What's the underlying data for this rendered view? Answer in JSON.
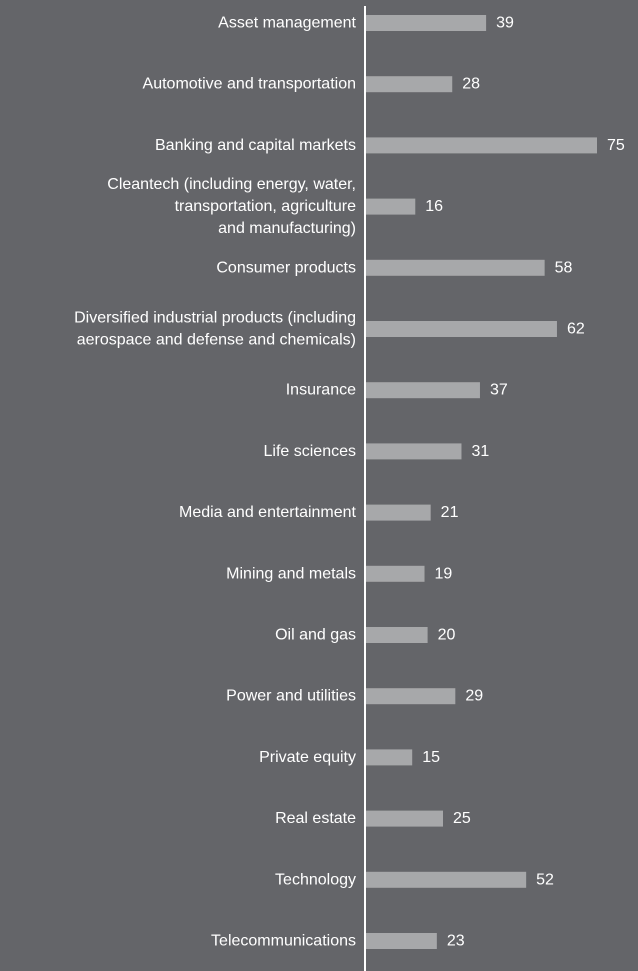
{
  "chart_data": {
    "type": "bar",
    "orientation": "horizontal",
    "categories": [
      [
        "Asset management"
      ],
      [
        "Automotive and transportation"
      ],
      [
        "Banking and capital markets"
      ],
      [
        "Cleantech (including energy, water,",
        "transportation, agriculture",
        "and manufacturing)"
      ],
      [
        "Consumer products"
      ],
      [
        "Diversified industrial products (including",
        "aerospace and defense and chemicals)"
      ],
      [
        "Insurance"
      ],
      [
        "Life sciences"
      ],
      [
        "Media and entertainment"
      ],
      [
        "Mining and metals"
      ],
      [
        "Oil and gas"
      ],
      [
        "Power and utilities"
      ],
      [
        "Private equity"
      ],
      [
        "Real estate"
      ],
      [
        "Technology"
      ],
      [
        "Telecommunications"
      ]
    ],
    "values": [
      39,
      28,
      75,
      16,
      58,
      62,
      37,
      31,
      21,
      19,
      20,
      29,
      15,
      25,
      52,
      23
    ],
    "data_labels": [
      "39",
      "28",
      "75",
      "16",
      "58",
      "62",
      "37",
      "31",
      "21",
      "19",
      "20",
      "29",
      "15",
      "25",
      "52",
      "23"
    ],
    "title": "",
    "xlabel": "",
    "ylabel": "",
    "xlim": [
      0,
      75
    ],
    "grid": false,
    "legend": "none"
  },
  "colors": {
    "background": "#646569",
    "bar": "#a7a8aa",
    "text": "#ffffff",
    "axis": "#ffffff"
  }
}
